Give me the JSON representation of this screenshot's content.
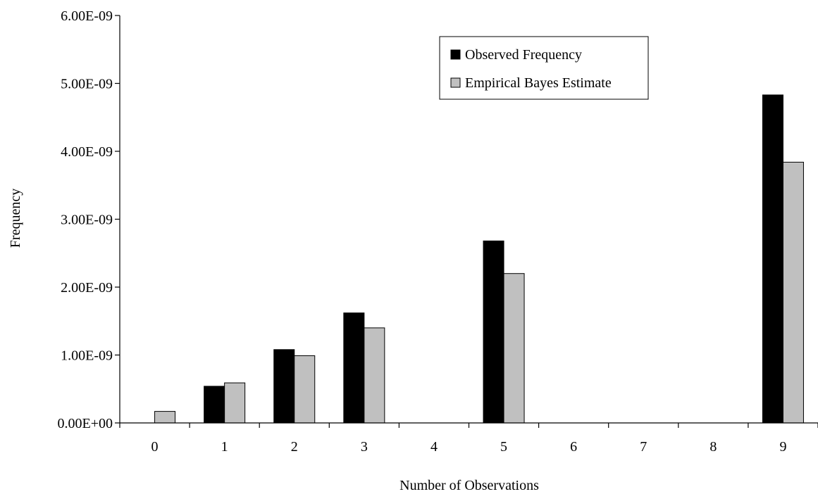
{
  "chart_data": {
    "type": "bar",
    "title": "",
    "xlabel": "Number of Observations",
    "ylabel": "Frequency",
    "categories": [
      "0",
      "1",
      "2",
      "3",
      "4",
      "5",
      "6",
      "7",
      "8",
      "9"
    ],
    "ylim": [
      0,
      6e-09
    ],
    "yticks": [
      "0.00E+00",
      "1.00E-09",
      "2.00E-09",
      "3.00E-09",
      "4.00E-09",
      "5.00E-09",
      "6.00E-09"
    ],
    "grid": false,
    "legend_position": "top-right",
    "series": [
      {
        "name": "Observed Frequency",
        "color": "#000000",
        "values": [
          0,
          5.4e-10,
          1.08e-09,
          1.62e-09,
          0,
          2.68e-09,
          0,
          0,
          0,
          4.83e-09
        ]
      },
      {
        "name": "Empirical Bayes Estimate",
        "color": "#c0c0c0",
        "values": [
          1.7e-10,
          5.9e-10,
          9.9e-10,
          1.4e-09,
          0,
          2.2e-09,
          0,
          0,
          0,
          3.84e-09
        ]
      }
    ]
  }
}
